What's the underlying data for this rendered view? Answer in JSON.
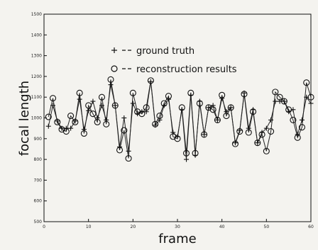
{
  "chart_data": {
    "type": "line",
    "xlabel": "frame",
    "ylabel": "focal length",
    "xlim": [
      0,
      60
    ],
    "ylim": [
      500,
      1500
    ],
    "xticks": [
      0,
      10,
      20,
      30,
      40,
      50,
      60
    ],
    "yticks": [
      500,
      600,
      700,
      800,
      900,
      1000,
      1100,
      1200,
      1300,
      1400,
      1500
    ],
    "grid": false,
    "legend_position": "top-center",
    "series": [
      {
        "name": "ground truth",
        "marker": "+",
        "x": [
          1,
          2,
          3,
          4,
          5,
          6,
          7,
          8,
          9,
          10,
          11,
          12,
          13,
          14,
          15,
          16,
          17,
          18,
          19,
          20,
          21,
          22,
          23,
          24,
          25,
          26,
          27,
          28,
          29,
          30,
          31,
          32,
          33,
          34,
          35,
          36,
          37,
          38,
          39,
          40,
          41,
          42,
          43,
          44,
          45,
          46,
          47,
          48,
          49,
          50,
          51,
          52,
          53,
          54,
          55,
          56,
          57,
          58,
          59,
          60
        ],
        "y": [
          960,
          1060,
          985,
          950,
          950,
          950,
          985,
          1090,
          945,
          1035,
          1080,
          1000,
          1060,
          990,
          1160,
          1060,
          860,
          1000,
          840,
          1070,
          1020,
          1030,
          1030,
          1175,
          965,
          990,
          1060,
          1090,
          930,
          910,
          1040,
          800,
          1110,
          820,
          1080,
          920,
          1050,
          1060,
          990,
          1095,
          1030,
          1050,
          880,
          940,
          1120,
          950,
          1040,
          880,
          930,
          950,
          990,
          1080,
          1080,
          1080,
          1030,
          1040,
          920,
          990,
          1100,
          1070
        ]
      },
      {
        "name": "reconstruction results",
        "marker": "o",
        "x": [
          1,
          2,
          3,
          4,
          5,
          6,
          7,
          8,
          9,
          10,
          11,
          12,
          13,
          14,
          15,
          16,
          17,
          18,
          19,
          20,
          21,
          22,
          23,
          24,
          25,
          26,
          27,
          28,
          29,
          30,
          31,
          32,
          33,
          34,
          35,
          36,
          37,
          38,
          39,
          40,
          41,
          42,
          43,
          44,
          45,
          46,
          47,
          48,
          49,
          50,
          51,
          52,
          53,
          54,
          55,
          56,
          57,
          58,
          59,
          60
        ],
        "y": [
          1005,
          1095,
          980,
          945,
          935,
          1010,
          980,
          1120,
          925,
          1060,
          1020,
          980,
          1100,
          970,
          1185,
          1060,
          845,
          940,
          805,
          1120,
          1030,
          1020,
          1050,
          1180,
          970,
          1010,
          1070,
          1105,
          910,
          900,
          1050,
          830,
          1120,
          830,
          1070,
          920,
          1050,
          1040,
          990,
          1110,
          1010,
          1050,
          875,
          935,
          1115,
          930,
          1030,
          880,
          920,
          840,
          935,
          1125,
          1100,
          1080,
          1040,
          990,
          905,
          955,
          1170,
          1100
        ]
      }
    ]
  }
}
